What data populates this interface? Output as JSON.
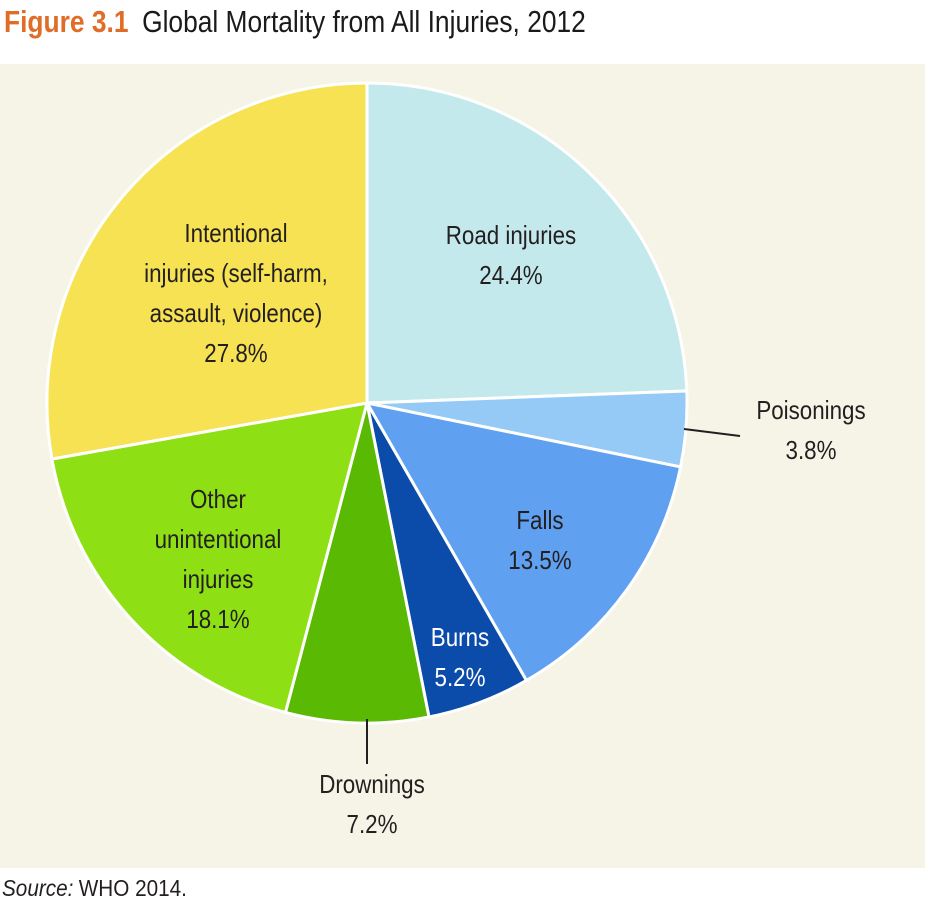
{
  "figure": {
    "number": "Figure 3.1",
    "title": "Global Mortality from All Injuries, 2012"
  },
  "source": {
    "lead": "Source:",
    "text": "WHO 2014."
  },
  "chart_data": {
    "type": "pie",
    "title": "Global Mortality from All Injuries, 2012",
    "unit": "%",
    "start_angle_deg": 0,
    "direction": "clockwise",
    "slices": [
      {
        "label_lines": [
          "Road injuries"
        ],
        "value": 24.4,
        "value_label": "24.4%",
        "color": "#C3E9EC"
      },
      {
        "label_lines": [
          "Poisonings"
        ],
        "value": 3.8,
        "value_label": "3.8%",
        "color": "#94CAF5"
      },
      {
        "label_lines": [
          "Falls"
        ],
        "value": 13.5,
        "value_label": "13.5%",
        "color": "#5FA0F0"
      },
      {
        "label_lines": [
          "Burns"
        ],
        "value": 5.2,
        "value_label": "5.2%",
        "color": "#0B4BAA",
        "light_text": true
      },
      {
        "label_lines": [
          "Drownings"
        ],
        "value": 7.2,
        "value_label": "7.2%",
        "color": "#5AB903"
      },
      {
        "label_lines": [
          "Other",
          "unintentional",
          "injuries"
        ],
        "value": 18.1,
        "value_label": "18.1%",
        "color": "#8EE015"
      },
      {
        "label_lines": [
          "Intentional",
          "injuries (self-harm,",
          "assault, violence)"
        ],
        "value": 27.8,
        "value_label": "27.8%",
        "color": "#F6E253"
      }
    ]
  }
}
